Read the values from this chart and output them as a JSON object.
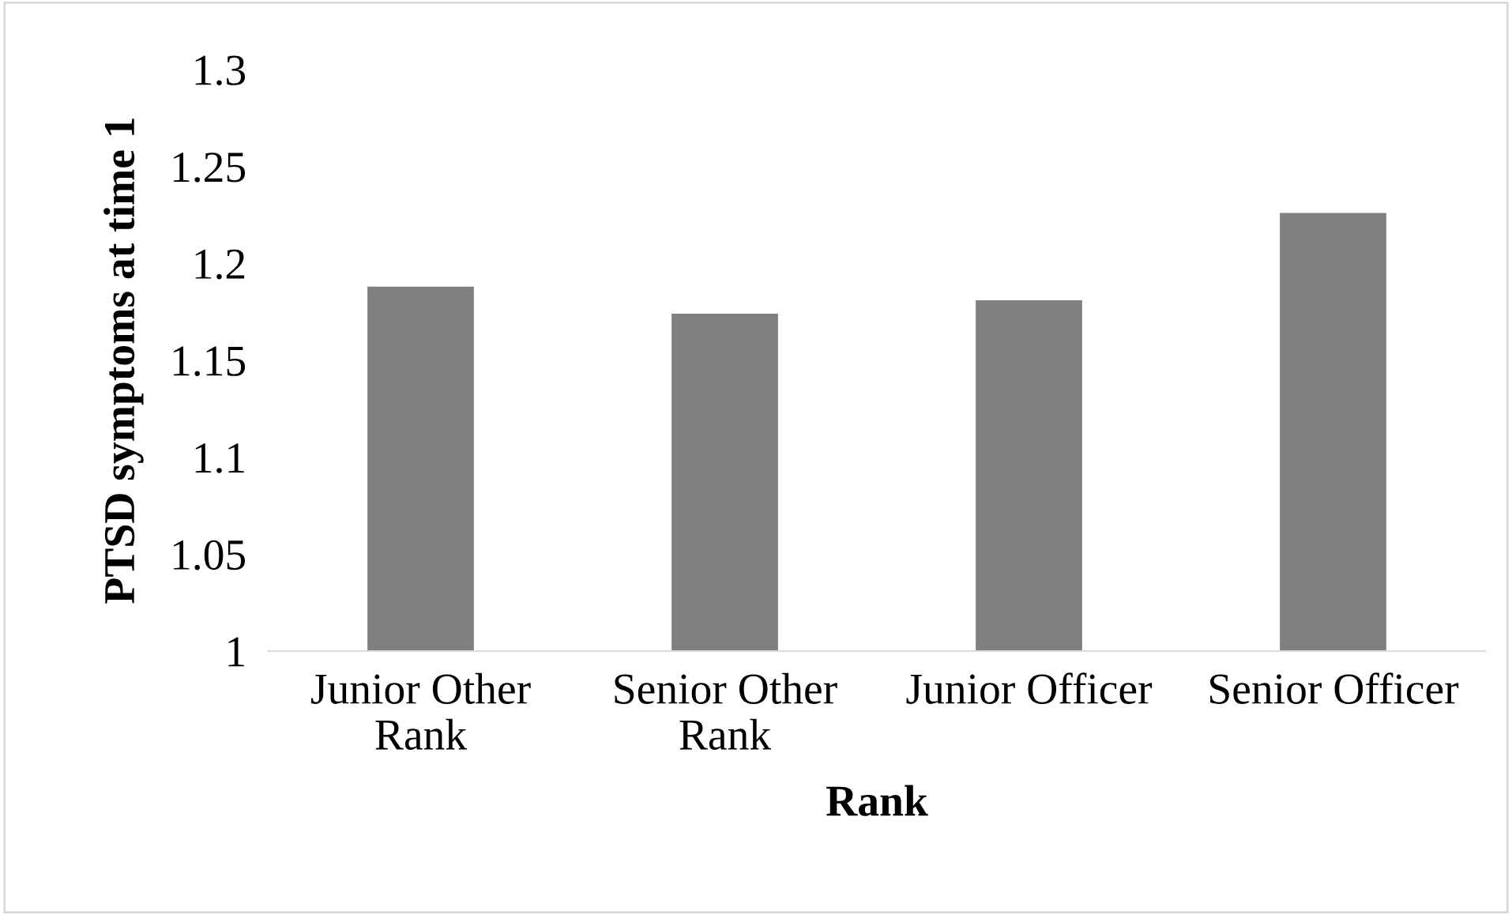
{
  "chart_data": {
    "type": "bar",
    "xlabel": "Rank",
    "ylabel": "PTSD symptoms at time 1",
    "categories": [
      "Junior Other\nRank",
      "Senior Other\nRank",
      "Junior Officer",
      "Senior Officer"
    ],
    "values": [
      1.188,
      1.174,
      1.181,
      1.226
    ],
    "color": "#808080",
    "ylim": [
      1,
      1.3
    ],
    "yticks": [
      1,
      1.05,
      1.1,
      1.15,
      1.2,
      1.25,
      1.3
    ],
    "grid": false,
    "legend": false
  }
}
